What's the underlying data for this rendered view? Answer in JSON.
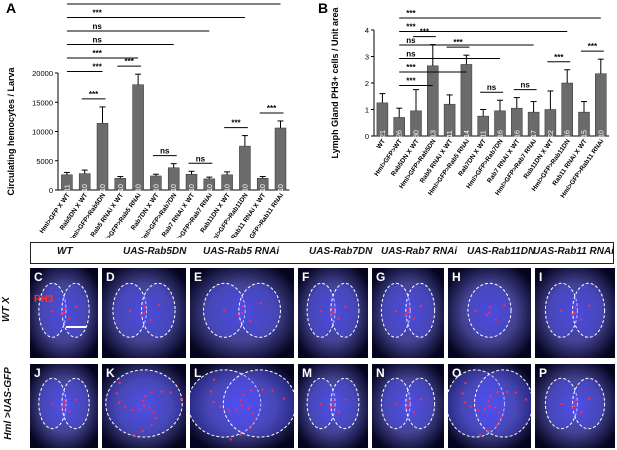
{
  "figure": {
    "panel_a_label": "A",
    "panel_b_label": "B",
    "micro_columns": [
      "WT",
      "UAS-Rab5DN",
      "UAS-Rab5 RNAi",
      "UAS-Rab7DN",
      "UAS-Rab7 RNAi",
      "UAS-Rab11DN",
      "UAS-Rab11 RNAi"
    ],
    "row_labels": [
      "WT X",
      "Hml >UAS-GFP"
    ],
    "ph3_label": "PH3",
    "tile_letters_row1": [
      "C",
      "D",
      "E",
      "F",
      "G",
      "H",
      "I"
    ],
    "tile_letters_row2": [
      "J",
      "K",
      "L",
      "M",
      "N",
      "O",
      "P"
    ]
  },
  "chart_data": [
    {
      "type": "bar",
      "panel": "A",
      "ylabel": "Circulating hemocytes / Larva",
      "ylim": [
        0,
        20000
      ],
      "yticks": [
        "0",
        "5000",
        "10000",
        "15000",
        "20000"
      ],
      "categories": [
        "Hml>GFP X WT",
        "Rab5DN X WT",
        "Hml>GFP>Rab5DN",
        "Rab5 RNAi X WT",
        "Hml>GFP>Rab5 RNAi",
        "Rab7DN X WT",
        "Hml>GFP>Rab7DN",
        "Rab7 RNAi X WT",
        "Hml>GFP>Rab7 RNAi",
        "Rab11DN X WT",
        "Hml>GFP>Rab11DN",
        "Rab11 RNAi X WT",
        "Hml>GFP>Rab11 RNAi"
      ],
      "values": [
        2600,
        2800,
        11400,
        2000,
        18000,
        2400,
        3800,
        2700,
        1900,
        2600,
        7500,
        2000,
        10600
      ],
      "errors": [
        400,
        600,
        2800,
        300,
        1800,
        300,
        700,
        500,
        300,
        500,
        1800,
        300,
        1200
      ],
      "n": [
        "11",
        "10",
        "10",
        "10",
        "10",
        "10",
        "10",
        "10",
        "10",
        "10",
        "10",
        "10",
        "10"
      ],
      "significance": [
        {
          "label": "***",
          "from": 0,
          "to": 12
        },
        {
          "label": "***",
          "from": 0,
          "to": 10
        },
        {
          "label": "ns",
          "from": 0,
          "to": 8
        },
        {
          "label": "ns",
          "from": 0,
          "to": 6
        },
        {
          "label": "***",
          "from": 0,
          "to": 4
        },
        {
          "label": "***",
          "from": 0,
          "to": 2
        },
        {
          "label": "***",
          "from": 1,
          "to": 2
        },
        {
          "label": "***",
          "from": 3,
          "to": 4
        },
        {
          "label": "ns",
          "from": 5,
          "to": 6
        },
        {
          "label": "ns",
          "from": 7,
          "to": 8
        },
        {
          "label": "***",
          "from": 9,
          "to": 10
        },
        {
          "label": "***",
          "from": 11,
          "to": 12
        }
      ]
    },
    {
      "type": "bar",
      "panel": "B",
      "ylabel": "Lymph Gland PH3+ cells / Unit area",
      "ylim": [
        0,
        4
      ],
      "yticks": [
        "0",
        "1",
        "2",
        "3",
        "4"
      ],
      "categories": [
        "WT",
        "Hml>GFP>WT",
        "Rab5DN X WT",
        "Hml>GFP>Rab5DN",
        "Rab5 RNAi X WT",
        "Hml>GFP>Rab5 RNAi",
        "Rab7DN X WT",
        "Hml>GFP>Rab7DN",
        "Rab7 RNAi X WT",
        "Hml>GFP>Rab7 RNAi",
        "Rab11DN X WT",
        "Hml>GFP>Rab11DN",
        "Rab11 RNAi X WT",
        "Hml>GFP>Rab11 RNAi"
      ],
      "values": [
        1.25,
        0.7,
        0.95,
        2.65,
        1.2,
        2.7,
        0.75,
        0.95,
        1.05,
        0.9,
        1.0,
        2.0,
        0.9,
        2.35
      ],
      "errors": [
        0.35,
        0.35,
        0.8,
        0.8,
        0.35,
        0.35,
        0.25,
        0.4,
        0.4,
        0.4,
        0.7,
        0.5,
        0.4,
        0.55
      ],
      "n": [
        "21",
        "26",
        "30",
        "13",
        "11",
        "14",
        "11",
        "16",
        "16",
        "17",
        "22",
        "16",
        "15",
        "10"
      ],
      "significance": [
        {
          "label": "***",
          "from": 1,
          "to": 13
        },
        {
          "label": "***",
          "from": 1,
          "to": 11
        },
        {
          "label": "ns",
          "from": 1,
          "to": 9
        },
        {
          "label": "ns",
          "from": 1,
          "to": 7
        },
        {
          "label": "***",
          "from": 1,
          "to": 5
        },
        {
          "label": "***",
          "from": 1,
          "to": 3
        },
        {
          "label": "***",
          "from": 2,
          "to": 3
        },
        {
          "label": "***",
          "from": 4,
          "to": 5
        },
        {
          "label": "ns",
          "from": 6,
          "to": 7
        },
        {
          "label": "ns",
          "from": 8,
          "to": 9
        },
        {
          "label": "***",
          "from": 10,
          "to": 11
        },
        {
          "label": "***",
          "from": 12,
          "to": 13
        }
      ]
    }
  ]
}
